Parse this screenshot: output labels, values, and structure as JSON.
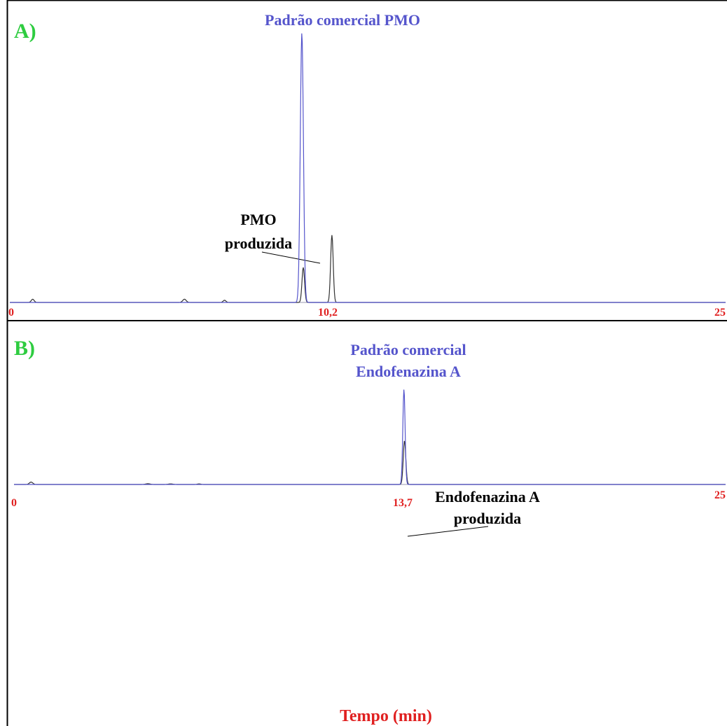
{
  "chart_data": [
    {
      "type": "line",
      "panel_label": "A)",
      "x_range": [
        0,
        25
      ],
      "tick_labels": [
        "0",
        "10,2",
        "25"
      ],
      "tick_values": [
        0,
        10.2,
        25
      ],
      "series": [
        {
          "name": "Padrão comercial PMO",
          "color": "#5555cc",
          "peaks": [
            {
              "x": 10.2,
              "height": 1.0,
              "width": 0.055
            }
          ]
        },
        {
          "name": "PMO produzida",
          "color": "#333333",
          "peaks": [
            {
              "x": 0.8,
              "height": 0.012,
              "width": 0.05
            },
            {
              "x": 6.1,
              "height": 0.012,
              "width": 0.06
            },
            {
              "x": 7.5,
              "height": 0.008,
              "width": 0.05
            },
            {
              "x": 10.25,
              "height": 0.13,
              "width": 0.045
            },
            {
              "x": 11.25,
              "height": 0.25,
              "width": 0.045
            }
          ]
        }
      ],
      "annotations": {
        "standard_label": "Padrão comercial PMO",
        "produced_label_lines": [
          "PMO",
          "produzida"
        ]
      },
      "colors": {
        "panel_label": "#2ecc40",
        "tick_label": "#e02020"
      }
    },
    {
      "type": "line",
      "panel_label": "B)",
      "x_range": [
        0,
        25
      ],
      "tick_labels": [
        "0",
        "13,7",
        "25"
      ],
      "tick_values": [
        0,
        13.7,
        25
      ],
      "series": [
        {
          "name": "Padrão comercial Endofenazina A",
          "color": "#5555cc",
          "peaks": [
            {
              "x": 13.7,
              "height": 1.0,
              "width": 0.04
            }
          ]
        },
        {
          "name": "Endofenazina A produzida",
          "color": "#333333",
          "peaks": [
            {
              "x": 0.6,
              "height": 0.025,
              "width": 0.06
            },
            {
              "x": 4.7,
              "height": 0.008,
              "width": 0.08
            },
            {
              "x": 5.5,
              "height": 0.006,
              "width": 0.08
            },
            {
              "x": 6.5,
              "height": 0.006,
              "width": 0.06
            },
            {
              "x": 13.72,
              "height": 0.46,
              "width": 0.045
            }
          ]
        }
      ],
      "annotations": {
        "standard_label_lines": [
          "Padrão comercial",
          "Endofenazina A"
        ],
        "produced_label_lines": [
          "Endofenazina A",
          "produzida"
        ]
      },
      "colors": {
        "panel_label": "#2ecc40",
        "tick_label": "#e02020"
      }
    }
  ],
  "xlabel": "Tempo (min)"
}
